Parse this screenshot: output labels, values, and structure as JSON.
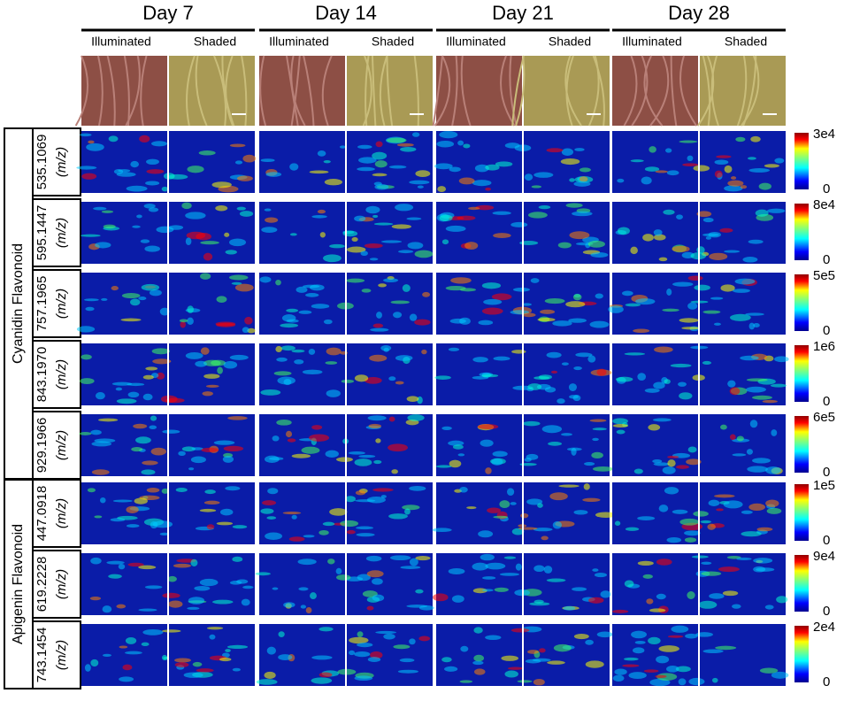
{
  "columns": [
    {
      "day": "Day 7",
      "conditions": [
        "Illuminated",
        "Shaded"
      ]
    },
    {
      "day": "Day 14",
      "conditions": [
        "Illuminated",
        "Shaded"
      ]
    },
    {
      "day": "Day 21",
      "conditions": [
        "Illuminated",
        "Shaded"
      ]
    },
    {
      "day": "Day 28",
      "conditions": [
        "Illuminated",
        "Shaded"
      ]
    }
  ],
  "groups": [
    {
      "name": "Cyanidin Flavonoid",
      "rows": [
        {
          "mz": "535.1069",
          "unit": "(m/z)",
          "scale_max": "3e4",
          "scale_min": "0"
        },
        {
          "mz": "595.1447",
          "unit": "(m/z)",
          "scale_max": "8e4",
          "scale_min": "0"
        },
        {
          "mz": "757.1965",
          "unit": "(m/z)",
          "scale_max": "5e5",
          "scale_min": "0"
        },
        {
          "mz": "843.1970",
          "unit": "(m/z)",
          "scale_max": "1e6",
          "scale_min": "0"
        },
        {
          "mz": "929.1966",
          "unit": "(m/z)",
          "scale_max": "6e5",
          "scale_min": "0"
        }
      ]
    },
    {
      "name": "Apigenin  Flavonoid",
      "rows": [
        {
          "mz": "447.0918",
          "unit": "(m/z)",
          "scale_max": "1e5",
          "scale_min": "0"
        },
        {
          "mz": "619.2228",
          "unit": "(m/z)",
          "scale_max": "9e4",
          "scale_min": "0"
        },
        {
          "mz": "743.1454",
          "unit": "(m/z)",
          "scale_max": "2e4",
          "scale_min": "0"
        }
      ]
    }
  ]
}
